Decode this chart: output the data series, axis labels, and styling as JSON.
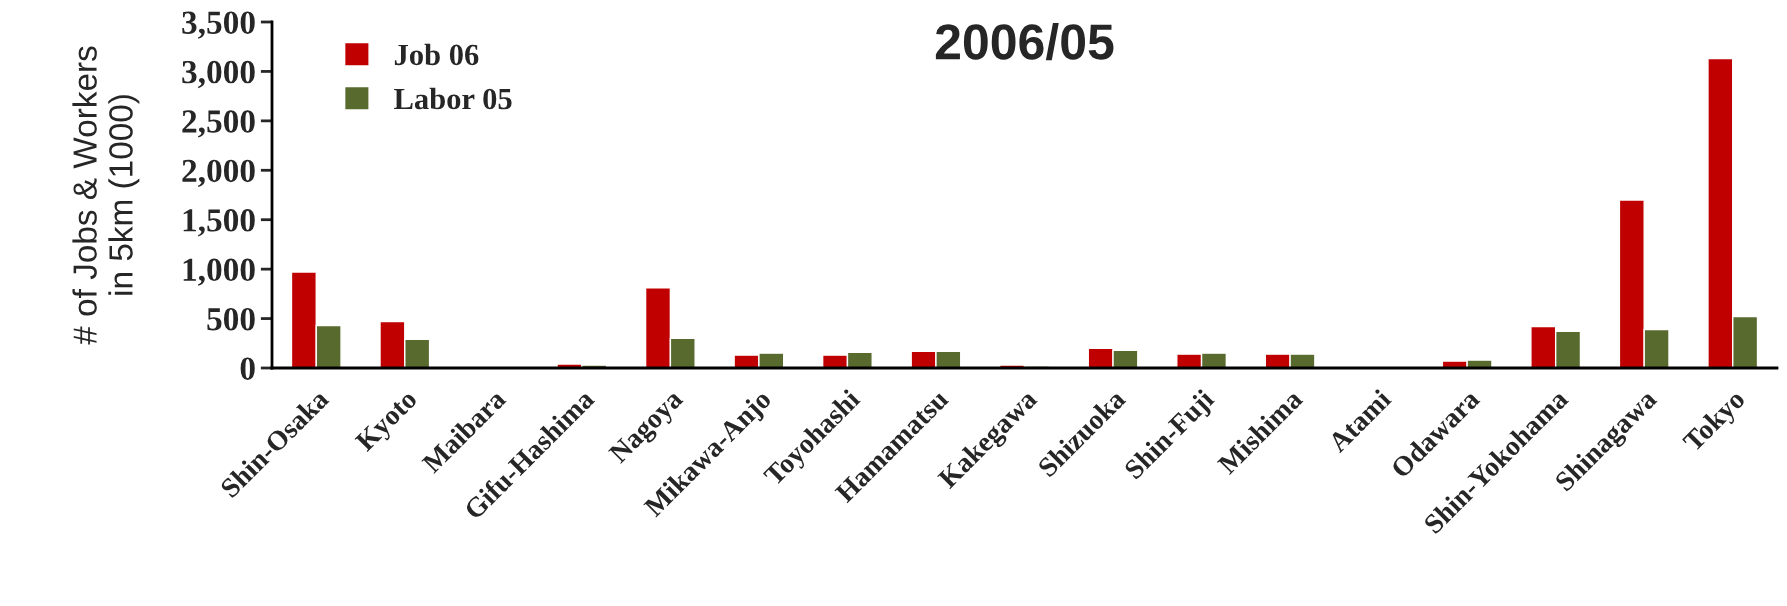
{
  "chart_data": {
    "type": "bar",
    "title": "2006/05",
    "ylabel": "# of Jobs & Workers\nin 5km (1000)",
    "categories": [
      "Shin-Osaka",
      "Kyoto",
      "Maibara",
      "Gifu-Hashima",
      "Nagoya",
      "Mikawa-Anjo",
      "Toyohashi",
      "Hamamatsu",
      "Kakegawa",
      "Shizuoka",
      "Shin-Fuji",
      "Mishima",
      "Atami",
      "Odawara",
      "Shin-Yokohama",
      "Shinagawa",
      "Tokyo"
    ],
    "series": [
      {
        "name": "Job 06",
        "color": "#c00000",
        "values": [
          970,
          470,
          null,
          40,
          810,
          130,
          130,
          170,
          30,
          200,
          140,
          140,
          null,
          70,
          420,
          1700,
          3130
        ]
      },
      {
        "name": "Labor 05",
        "color": "#586a2e",
        "values": [
          430,
          290,
          null,
          30,
          300,
          150,
          160,
          170,
          20,
          180,
          150,
          140,
          null,
          80,
          370,
          390,
          520
        ]
      }
    ],
    "ylim": [
      0,
      3500
    ],
    "yticks": [
      {
        "value": 0,
        "label": "0"
      },
      {
        "value": 500,
        "label": "500"
      },
      {
        "value": 1000,
        "label": "1,000"
      },
      {
        "value": 1500,
        "label": "1,500"
      },
      {
        "value": 2000,
        "label": "2,000"
      },
      {
        "value": 2500,
        "label": "2,500"
      },
      {
        "value": 3000,
        "label": "3,000"
      },
      {
        "value": 3500,
        "label": "3,500"
      }
    ],
    "grid": false,
    "legend": "top left"
  }
}
